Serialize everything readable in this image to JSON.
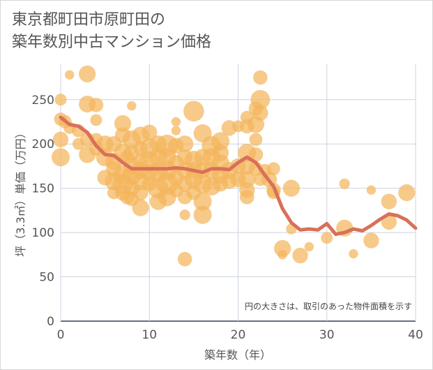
{
  "chart_data": {
    "type": "scatter",
    "title_line1": "東京都町田市原町田の",
    "title_line2": "築年数別中古マンション価格",
    "xlabel": "築年数（年）",
    "ylabel": "坪（3.3㎡）単価（万円）",
    "note": "円の大きさは、取引のあった物件面積を示す",
    "xlim": [
      0,
      40
    ],
    "ylim": [
      0,
      290
    ],
    "x_ticks": [
      "0",
      "10",
      "20",
      "30",
      "40"
    ],
    "y_ticks": [
      "0",
      "50",
      "100",
      "150",
      "200",
      "250"
    ],
    "grid": true,
    "colors": {
      "bubble": "#f4b55c",
      "line": "#d9705a",
      "grid": "#ccd3df",
      "text": "#555555"
    },
    "series": [
      {
        "kind": "points",
        "points": [
          {
            "x": 0,
            "y": 250,
            "s": 0.5
          },
          {
            "x": 0,
            "y": 228,
            "s": 0.6
          },
          {
            "x": 0,
            "y": 205,
            "s": 0.8
          },
          {
            "x": 0,
            "y": 185,
            "s": 1
          },
          {
            "x": 0.5,
            "y": 225,
            "s": 0.6
          },
          {
            "x": 1,
            "y": 278,
            "s": 0.3
          },
          {
            "x": 1,
            "y": 218,
            "s": 0.5
          },
          {
            "x": 2,
            "y": 215,
            "s": 0.6
          },
          {
            "x": 2,
            "y": 200,
            "s": 0.5
          },
          {
            "x": 3,
            "y": 279,
            "s": 0.9
          },
          {
            "x": 3,
            "y": 245,
            "s": 0.9
          },
          {
            "x": 3,
            "y": 205,
            "s": 0.7
          },
          {
            "x": 3,
            "y": 188,
            "s": 0.9
          },
          {
            "x": 4,
            "y": 244,
            "s": 0.7
          },
          {
            "x": 4,
            "y": 227,
            "s": 0.5
          },
          {
            "x": 4,
            "y": 205,
            "s": 0.6
          },
          {
            "x": 4,
            "y": 195,
            "s": 0.7
          },
          {
            "x": 5,
            "y": 200,
            "s": 0.9
          },
          {
            "x": 5,
            "y": 185,
            "s": 1
          },
          {
            "x": 5,
            "y": 162,
            "s": 0.8
          },
          {
            "x": 6,
            "y": 200,
            "s": 0.8
          },
          {
            "x": 6,
            "y": 180,
            "s": 0.9
          },
          {
            "x": 6,
            "y": 172,
            "s": 0.8
          },
          {
            "x": 6,
            "y": 158,
            "s": 1
          },
          {
            "x": 6,
            "y": 145,
            "s": 0.6
          },
          {
            "x": 7,
            "y": 223,
            "s": 0.9
          },
          {
            "x": 7,
            "y": 210,
            "s": 0.8
          },
          {
            "x": 7,
            "y": 190,
            "s": 1
          },
          {
            "x": 7,
            "y": 165,
            "s": 1.1
          },
          {
            "x": 7,
            "y": 155,
            "s": 1.2
          },
          {
            "x": 7,
            "y": 145,
            "s": 0.8
          },
          {
            "x": 7.5,
            "y": 185,
            "s": 0.7
          },
          {
            "x": 7.5,
            "y": 140,
            "s": 0.7
          },
          {
            "x": 8,
            "y": 243,
            "s": 0.3
          },
          {
            "x": 8,
            "y": 205,
            "s": 1
          },
          {
            "x": 8,
            "y": 190,
            "s": 0.8
          },
          {
            "x": 8,
            "y": 175,
            "s": 0.9
          },
          {
            "x": 8,
            "y": 165,
            "s": 1.1
          },
          {
            "x": 8,
            "y": 150,
            "s": 0.8
          },
          {
            "x": 8,
            "y": 138,
            "s": 0.7
          },
          {
            "x": 9,
            "y": 210,
            "s": 0.9
          },
          {
            "x": 9,
            "y": 195,
            "s": 0.7
          },
          {
            "x": 9,
            "y": 180,
            "s": 0.8
          },
          {
            "x": 9,
            "y": 170,
            "s": 0.9
          },
          {
            "x": 9,
            "y": 158,
            "s": 1
          },
          {
            "x": 9,
            "y": 145,
            "s": 0.8
          },
          {
            "x": 9,
            "y": 128,
            "s": 0.9
          },
          {
            "x": 10,
            "y": 213,
            "s": 0.8
          },
          {
            "x": 10,
            "y": 195,
            "s": 1.1
          },
          {
            "x": 10,
            "y": 180,
            "s": 1.2
          },
          {
            "x": 10,
            "y": 168,
            "s": 0.9
          },
          {
            "x": 10,
            "y": 155,
            "s": 0.7
          },
          {
            "x": 11,
            "y": 200,
            "s": 0.9
          },
          {
            "x": 11,
            "y": 185,
            "s": 1
          },
          {
            "x": 11,
            "y": 168,
            "s": 1.1
          },
          {
            "x": 11,
            "y": 150,
            "s": 1.2
          },
          {
            "x": 11,
            "y": 135,
            "s": 0.9
          },
          {
            "x": 12,
            "y": 198,
            "s": 1.3
          },
          {
            "x": 12,
            "y": 185,
            "s": 1
          },
          {
            "x": 12,
            "y": 170,
            "s": 1.1
          },
          {
            "x": 12,
            "y": 155,
            "s": 1.3
          },
          {
            "x": 12,
            "y": 140,
            "s": 1
          },
          {
            "x": 13,
            "y": 225,
            "s": 0.3
          },
          {
            "x": 13,
            "y": 215,
            "s": 0.3
          },
          {
            "x": 13,
            "y": 198,
            "s": 0.8
          },
          {
            "x": 13,
            "y": 178,
            "s": 0.9
          },
          {
            "x": 13,
            "y": 162,
            "s": 0.8
          },
          {
            "x": 13,
            "y": 148,
            "s": 0.7
          },
          {
            "x": 14,
            "y": 200,
            "s": 0.9
          },
          {
            "x": 14,
            "y": 185,
            "s": 0.8
          },
          {
            "x": 14,
            "y": 170,
            "s": 0.9
          },
          {
            "x": 14,
            "y": 155,
            "s": 0.8
          },
          {
            "x": 14,
            "y": 140,
            "s": 0.7
          },
          {
            "x": 14,
            "y": 120,
            "s": 0.4
          },
          {
            "x": 14,
            "y": 70,
            "s": 0.7
          },
          {
            "x": 15,
            "y": 237,
            "s": 1.2
          },
          {
            "x": 15,
            "y": 182,
            "s": 1
          },
          {
            "x": 15,
            "y": 170,
            "s": 0.9
          },
          {
            "x": 15,
            "y": 160,
            "s": 1
          },
          {
            "x": 15,
            "y": 145,
            "s": 0.7
          },
          {
            "x": 16,
            "y": 212,
            "s": 1
          },
          {
            "x": 16,
            "y": 185,
            "s": 0.9
          },
          {
            "x": 16,
            "y": 170,
            "s": 0.8
          },
          {
            "x": 16,
            "y": 155,
            "s": 1.1
          },
          {
            "x": 16,
            "y": 135,
            "s": 1
          },
          {
            "x": 16,
            "y": 120,
            "s": 1
          },
          {
            "x": 17,
            "y": 198,
            "s": 1.1
          },
          {
            "x": 17,
            "y": 185,
            "s": 1
          },
          {
            "x": 17,
            "y": 170,
            "s": 0.9
          },
          {
            "x": 17,
            "y": 152,
            "s": 1
          },
          {
            "x": 18,
            "y": 203,
            "s": 1
          },
          {
            "x": 18,
            "y": 190,
            "s": 0.9
          },
          {
            "x": 18,
            "y": 178,
            "s": 1
          },
          {
            "x": 18,
            "y": 165,
            "s": 0.9
          },
          {
            "x": 18,
            "y": 155,
            "s": 0.8
          },
          {
            "x": 19,
            "y": 218,
            "s": 0.8
          },
          {
            "x": 19,
            "y": 170,
            "s": 0.9
          },
          {
            "x": 19,
            "y": 158,
            "s": 0.8
          },
          {
            "x": 20,
            "y": 220,
            "s": 0.5
          },
          {
            "x": 20,
            "y": 175,
            "s": 0.8
          },
          {
            "x": 20,
            "y": 160,
            "s": 0.8
          },
          {
            "x": 21,
            "y": 230,
            "s": 0.6
          },
          {
            "x": 21,
            "y": 220,
            "s": 0.7
          },
          {
            "x": 21,
            "y": 190,
            "s": 1
          },
          {
            "x": 21,
            "y": 175,
            "s": 0.9
          },
          {
            "x": 21,
            "y": 160,
            "s": 0.9
          },
          {
            "x": 21,
            "y": 148,
            "s": 0.8
          },
          {
            "x": 21,
            "y": 140,
            "s": 0.7
          },
          {
            "x": 22,
            "y": 240,
            "s": 0.7
          },
          {
            "x": 22,
            "y": 222,
            "s": 0.9
          },
          {
            "x": 22,
            "y": 205,
            "s": 0.6
          },
          {
            "x": 22,
            "y": 188,
            "s": 0.7
          },
          {
            "x": 22,
            "y": 172,
            "s": 0.7
          },
          {
            "x": 22.5,
            "y": 275,
            "s": 0.7
          },
          {
            "x": 22.5,
            "y": 250,
            "s": 1.1
          },
          {
            "x": 22.5,
            "y": 235,
            "s": 0.8
          },
          {
            "x": 22.5,
            "y": 160,
            "s": 0.6
          },
          {
            "x": 23,
            "y": 170,
            "s": 0.6
          },
          {
            "x": 23.5,
            "y": 160,
            "s": 0.8
          },
          {
            "x": 24,
            "y": 172,
            "s": 0.6
          },
          {
            "x": 24,
            "y": 148,
            "s": 0.7
          },
          {
            "x": 24,
            "y": 145,
            "s": 0.6
          },
          {
            "x": 25,
            "y": 82,
            "s": 0.9
          },
          {
            "x": 25,
            "y": 75,
            "s": 0.3
          },
          {
            "x": 26,
            "y": 150,
            "s": 0.9
          },
          {
            "x": 26,
            "y": 104,
            "s": 0.4
          },
          {
            "x": 27,
            "y": 74,
            "s": 0.8
          },
          {
            "x": 28,
            "y": 84,
            "s": 0.3
          },
          {
            "x": 30,
            "y": 94,
            "s": 0.5
          },
          {
            "x": 32,
            "y": 155,
            "s": 0.4
          },
          {
            "x": 32,
            "y": 105,
            "s": 0.9
          },
          {
            "x": 33,
            "y": 76,
            "s": 0.3
          },
          {
            "x": 35,
            "y": 91,
            "s": 0.8
          },
          {
            "x": 35,
            "y": 148,
            "s": 0.3
          },
          {
            "x": 37,
            "y": 135,
            "s": 0.8
          },
          {
            "x": 37,
            "y": 112,
            "s": 0.8
          },
          {
            "x": 39,
            "y": 145,
            "s": 0.9
          }
        ]
      },
      {
        "kind": "line",
        "points": [
          {
            "x": 0,
            "y": 230
          },
          {
            "x": 1,
            "y": 222
          },
          {
            "x": 2,
            "y": 220
          },
          {
            "x": 3,
            "y": 213
          },
          {
            "x": 4,
            "y": 198
          },
          {
            "x": 5,
            "y": 188
          },
          {
            "x": 6,
            "y": 187
          },
          {
            "x": 7,
            "y": 179
          },
          {
            "x": 8,
            "y": 172
          },
          {
            "x": 9,
            "y": 172
          },
          {
            "x": 10,
            "y": 172
          },
          {
            "x": 11,
            "y": 172
          },
          {
            "x": 12,
            "y": 172
          },
          {
            "x": 13,
            "y": 173
          },
          {
            "x": 14,
            "y": 172
          },
          {
            "x": 15,
            "y": 170
          },
          {
            "x": 16,
            "y": 168
          },
          {
            "x": 17,
            "y": 172
          },
          {
            "x": 18,
            "y": 172
          },
          {
            "x": 19,
            "y": 171
          },
          {
            "x": 20,
            "y": 179
          },
          {
            "x": 21,
            "y": 185
          },
          {
            "x": 22,
            "y": 179
          },
          {
            "x": 23,
            "y": 165
          },
          {
            "x": 24,
            "y": 152
          },
          {
            "x": 25,
            "y": 127
          },
          {
            "x": 26,
            "y": 111
          },
          {
            "x": 27,
            "y": 103
          },
          {
            "x": 28,
            "y": 104
          },
          {
            "x": 29,
            "y": 103
          },
          {
            "x": 30,
            "y": 110
          },
          {
            "x": 31,
            "y": 98
          },
          {
            "x": 32,
            "y": 100
          },
          {
            "x": 33,
            "y": 104
          },
          {
            "x": 34,
            "y": 102
          },
          {
            "x": 35,
            "y": 108
          },
          {
            "x": 36,
            "y": 115
          },
          {
            "x": 37,
            "y": 121
          },
          {
            "x": 38,
            "y": 119
          },
          {
            "x": 39,
            "y": 114
          },
          {
            "x": 40,
            "y": 105
          }
        ]
      }
    ]
  }
}
